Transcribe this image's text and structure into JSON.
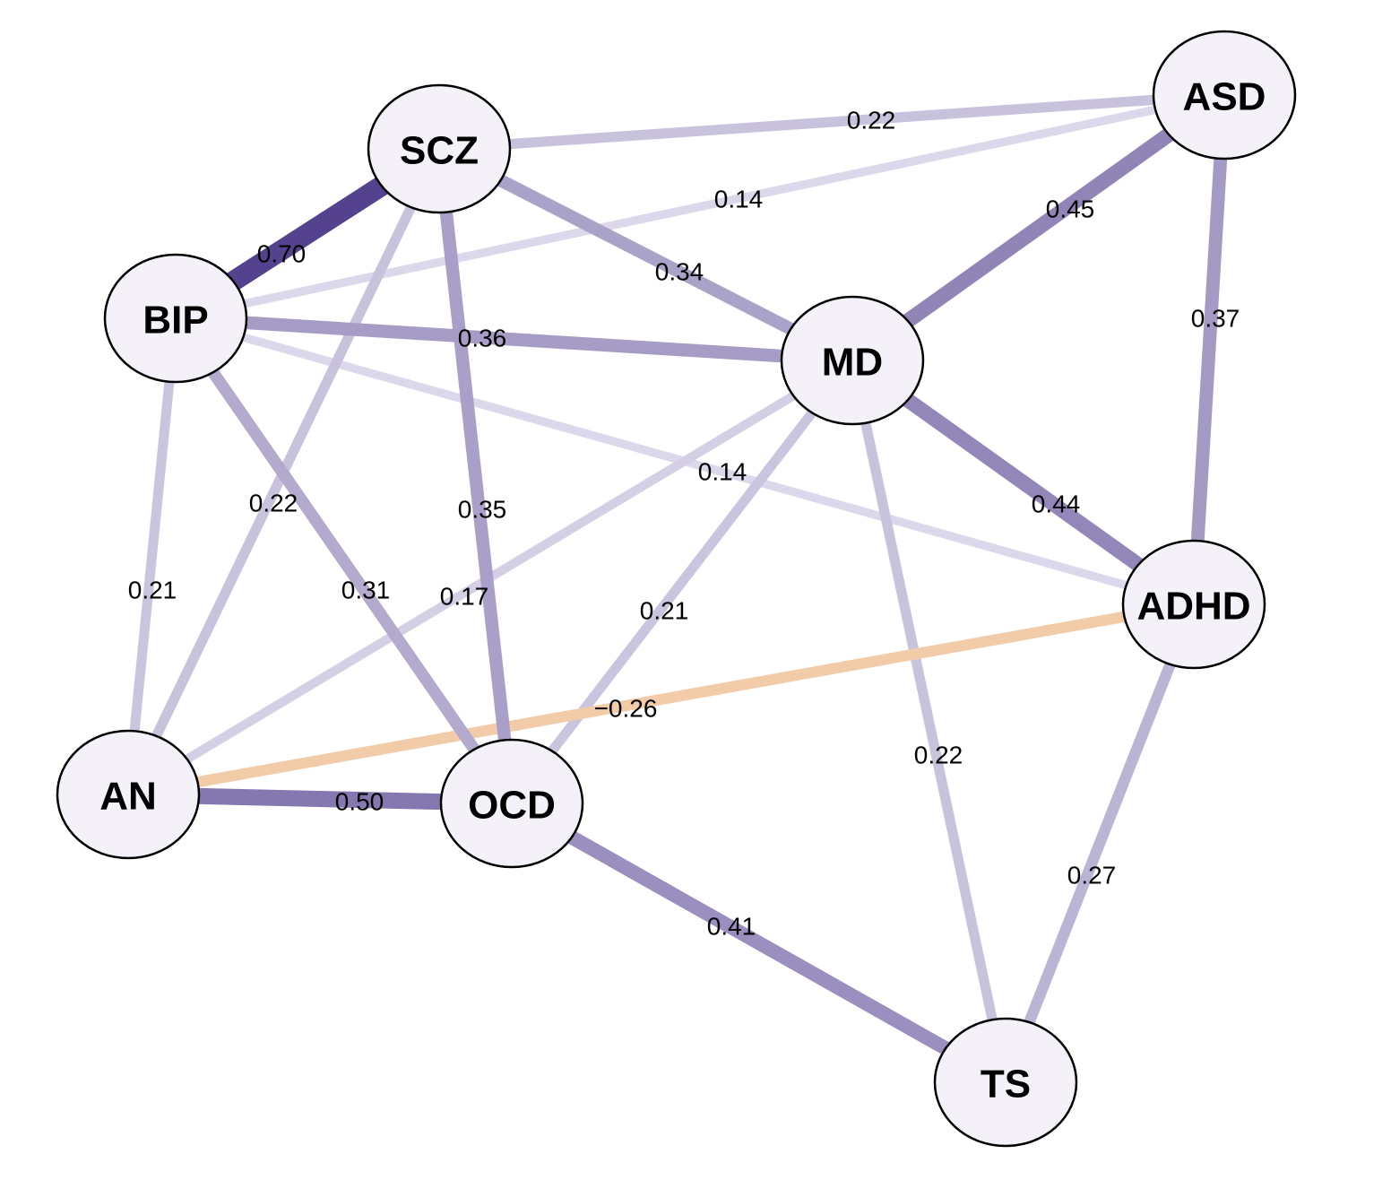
{
  "diagram": {
    "type": "network",
    "nodes": [
      {
        "id": "SCZ",
        "label": "SCZ"
      },
      {
        "id": "ASD",
        "label": "ASD"
      },
      {
        "id": "BIP",
        "label": "BIP"
      },
      {
        "id": "MD",
        "label": "MD"
      },
      {
        "id": "ADHD",
        "label": "ADHD"
      },
      {
        "id": "AN",
        "label": "AN"
      },
      {
        "id": "OCD",
        "label": "OCD"
      },
      {
        "id": "TS",
        "label": "TS"
      }
    ],
    "edges": [
      {
        "source": "SCZ",
        "target": "ASD",
        "weight": 0.22,
        "label": "0.22"
      },
      {
        "source": "BIP",
        "target": "ASD",
        "weight": 0.14,
        "label": "0.14"
      },
      {
        "source": "BIP",
        "target": "SCZ",
        "weight": 0.7,
        "label": "0.70"
      },
      {
        "source": "SCZ",
        "target": "MD",
        "weight": 0.34,
        "label": "0.34"
      },
      {
        "source": "MD",
        "target": "ASD",
        "weight": 0.45,
        "label": "0.45"
      },
      {
        "source": "ASD",
        "target": "ADHD",
        "weight": 0.37,
        "label": "0.37"
      },
      {
        "source": "BIP",
        "target": "MD",
        "weight": 0.36,
        "label": "0.36"
      },
      {
        "source": "BIP",
        "target": "ADHD",
        "weight": 0.14,
        "label": "0.14"
      },
      {
        "source": "MD",
        "target": "ADHD",
        "weight": 0.44,
        "label": "0.44"
      },
      {
        "source": "SCZ",
        "target": "AN",
        "weight": 0.22,
        "label": "0.22"
      },
      {
        "source": "SCZ",
        "target": "OCD",
        "weight": 0.35,
        "label": "0.35"
      },
      {
        "source": "BIP",
        "target": "AN",
        "weight": 0.21,
        "label": "0.21"
      },
      {
        "source": "BIP",
        "target": "OCD",
        "weight": 0.31,
        "label": "0.31"
      },
      {
        "source": "MD",
        "target": "AN",
        "weight": 0.17,
        "label": "0.17"
      },
      {
        "source": "MD",
        "target": "OCD",
        "weight": 0.21,
        "label": "0.21"
      },
      {
        "source": "AN",
        "target": "ADHD",
        "weight": -0.26,
        "label": "−0.26"
      },
      {
        "source": "AN",
        "target": "OCD",
        "weight": 0.5,
        "label": "0.50"
      },
      {
        "source": "MD",
        "target": "TS",
        "weight": 0.22,
        "label": "0.22"
      },
      {
        "source": "OCD",
        "target": "TS",
        "weight": 0.41,
        "label": "0.41"
      },
      {
        "source": "ADHD",
        "target": "TS",
        "weight": 0.27,
        "label": "0.27"
      }
    ],
    "colors": {
      "positive_light": "#dcd7ea",
      "positive_dark": "#54428e",
      "negative": "#f2cba8",
      "node_fill": "#f4f2f8",
      "node_stroke": "#000000"
    }
  }
}
